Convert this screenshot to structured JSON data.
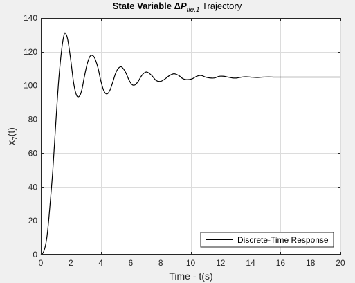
{
  "chart_data": {
    "type": "line",
    "title": {
      "bold_prefix": "State Variable ",
      "delta": "Δ",
      "symbol": "P",
      "subscript": "tie,1",
      "suffix": " Trajectory"
    },
    "xlabel": "Time - t(s)",
    "ylabel": {
      "base": "x",
      "subscript": "7",
      "suffix": "(t)"
    },
    "xlim": [
      0,
      20
    ],
    "ylim": [
      0,
      140
    ],
    "xticks": [
      0,
      2,
      4,
      6,
      8,
      10,
      12,
      14,
      16,
      18,
      20
    ],
    "yticks": [
      0,
      20,
      40,
      60,
      80,
      100,
      120,
      140
    ],
    "grid": true,
    "legend_position": "bottom-right",
    "colors": {
      "line": "#000000",
      "grid": "#dcdcdc",
      "axes_bg": "#ffffff",
      "figure_bg": "#f0f0f0"
    },
    "series": [
      {
        "name": "Discrete-Time Response",
        "x": [
          0,
          0.1,
          0.2,
          0.3,
          0.4,
          0.5,
          0.6,
          0.8,
          1.0,
          1.2,
          1.4,
          1.55,
          1.65,
          1.8,
          2.0,
          2.2,
          2.4,
          2.6,
          2.75,
          2.9,
          3.1,
          3.3,
          3.55,
          3.8,
          4.0,
          4.2,
          4.4,
          4.6,
          4.8,
          5.0,
          5.2,
          5.4,
          5.65,
          5.9,
          6.1,
          6.3,
          6.5,
          6.7,
          6.9,
          7.1,
          7.4,
          7.7,
          8.0,
          8.3,
          8.6,
          8.9,
          9.2,
          9.5,
          9.8,
          10.1,
          10.4,
          10.7,
          11.0,
          11.3,
          11.6,
          11.9,
          12.2,
          12.5,
          12.8,
          13.1,
          13.4,
          13.7,
          14.0,
          14.4,
          14.8,
          15.2,
          15.6,
          16.0,
          17.0,
          18.0,
          19.0,
          20.0
        ],
        "y": [
          0,
          0.5,
          2,
          5,
          10,
          18,
          28,
          50,
          78,
          104,
          122,
          130,
          131,
          127,
          115,
          101,
          94,
          94,
          98,
          105,
          113,
          117.5,
          117,
          111,
          103,
          97,
          95,
          97,
          102,
          107.5,
          110.5,
          111,
          108,
          103,
          100.5,
          100.5,
          102.5,
          105.5,
          107.5,
          108,
          106,
          103,
          102.5,
          104,
          106,
          107,
          106,
          104,
          103.5,
          104,
          105.5,
          106,
          105,
          104.5,
          104.5,
          105.5,
          105.5,
          105,
          104.5,
          104.5,
          105,
          105.2,
          105,
          104.8,
          105,
          105.1,
          105,
          105,
          105,
          105,
          105,
          105
        ]
      }
    ]
  }
}
